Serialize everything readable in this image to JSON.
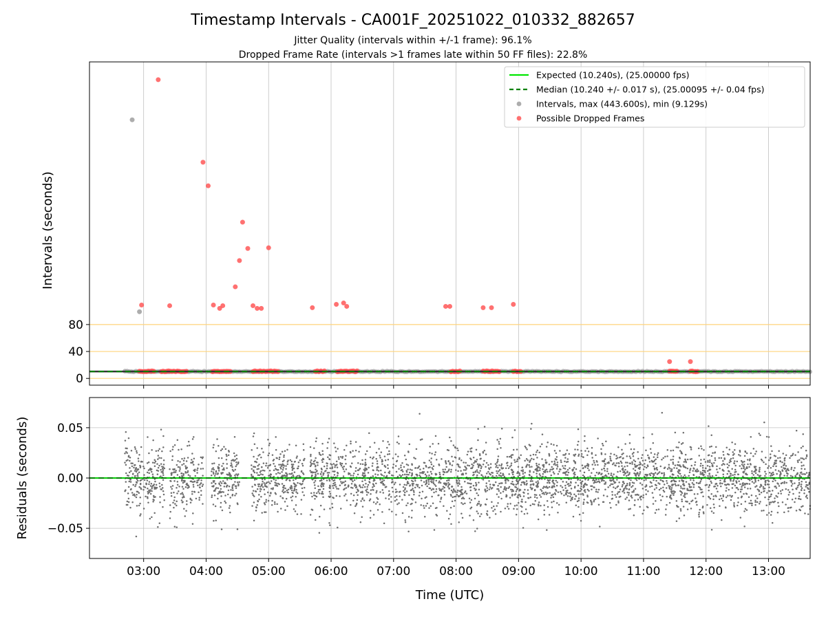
{
  "chart_data": [
    {
      "type": "scatter",
      "title": "Timestamp Intervals - CA001F_20251022_010332_882657",
      "subtitle_lines": [
        "Jitter Quality (intervals within +/-1 frame): 96.1%",
        "Dropped Frame Rate (intervals >1 frames late within 50 FF files): 22.8%"
      ],
      "ylabel": "Intervals (seconds)",
      "yticks": [
        "0",
        "40",
        "80"
      ],
      "ytick_values": [
        0,
        40,
        80
      ],
      "ylim": [
        -10,
        470
      ],
      "xlim": [
        "02:08",
        "13:40"
      ],
      "xticks": [
        "03:00",
        "04:00",
        "05:00",
        "06:00",
        "07:00",
        "08:00",
        "09:00",
        "10:00",
        "11:00",
        "12:00",
        "13:00"
      ],
      "grid": "vertical",
      "threshold_lines": [
        0,
        40,
        80
      ],
      "threshold_color": "#ffd37a",
      "legend_position": "top-right",
      "series": [
        {
          "name": "Expected (10.240s), (25.00000 fps)",
          "kind": "line",
          "color": "#00e600",
          "y": 10.24
        },
        {
          "name": "Median (10.240 +/- 0.017 s), (25.00095 +/- 0.04 fps)",
          "kind": "dashed-line",
          "color": "#008000",
          "y": 10.24
        },
        {
          "name": "Intervals, max (443.600s), min (9.129s)",
          "kind": "scatter",
          "color": "#999999",
          "points": [
            [
              "02:49",
              384.0
            ],
            [
              "02:56",
              99.0
            ]
          ],
          "band": {
            "from": "02:42",
            "to": "13:40",
            "y": 10.24
          }
        },
        {
          "name": "Possible Dropped Frames",
          "kind": "scatter",
          "color": "#ff4d4d",
          "points": [
            [
              "03:14",
              443.6
            ],
            [
              "03:57",
              321.0
            ],
            [
              "04:02",
              286.0
            ],
            [
              "04:35",
              232.0
            ],
            [
              "05:00",
              194.0
            ],
            [
              "04:40",
              193.0
            ],
            [
              "04:32",
              175.0
            ],
            [
              "04:28",
              136.0
            ],
            [
              "02:58",
              109.0
            ],
            [
              "03:25",
              108.0
            ],
            [
              "04:07",
              109.0
            ],
            [
              "04:13",
              104.0
            ],
            [
              "04:16",
              108.0
            ],
            [
              "04:45",
              108.0
            ],
            [
              "04:49",
              104.0
            ],
            [
              "04:53",
              104.0
            ],
            [
              "05:42",
              105.0
            ],
            [
              "06:05",
              110.0
            ],
            [
              "06:12",
              112.0
            ],
            [
              "06:15",
              107.0
            ],
            [
              "07:50",
              107.0
            ],
            [
              "07:54",
              107.0
            ],
            [
              "08:26",
              105.0
            ],
            [
              "08:34",
              105.0
            ],
            [
              "08:55",
              110.0
            ],
            [
              "11:25",
              25.0
            ],
            [
              "11:45",
              25.0
            ]
          ],
          "clusters": [
            {
              "from": "02:56",
              "to": "03:11",
              "y": 10.5
            },
            {
              "from": "03:17",
              "to": "03:42",
              "y": 10.5
            },
            {
              "from": "04:06",
              "to": "04:24",
              "y": 10.5
            },
            {
              "from": "04:45",
              "to": "05:10",
              "y": 10.5
            },
            {
              "from": "05:45",
              "to": "05:55",
              "y": 10.5
            },
            {
              "from": "06:06",
              "to": "06:25",
              "y": 10.5
            },
            {
              "from": "07:55",
              "to": "08:05",
              "y": 10.5
            },
            {
              "from": "08:26",
              "to": "08:42",
              "y": 10.5
            },
            {
              "from": "08:55",
              "to": "09:03",
              "y": 10.5
            },
            {
              "from": "11:25",
              "to": "11:33",
              "y": 10.5
            },
            {
              "from": "11:45",
              "to": "11:52",
              "y": 10.5
            }
          ]
        }
      ]
    },
    {
      "type": "scatter",
      "xlabel": "Time (UTC)",
      "ylabel": "Residuals (seconds)",
      "yticks": [
        "0.05",
        "0.00",
        "−0.05"
      ],
      "ytick_values": [
        0.05,
        0.0,
        -0.05
      ],
      "ylim": [
        -0.08,
        0.08
      ],
      "xlim": [
        "02:08",
        "13:40"
      ],
      "xticks": [
        "03:00",
        "04:00",
        "05:00",
        "06:00",
        "07:00",
        "08:00",
        "09:00",
        "10:00",
        "11:00",
        "12:00",
        "13:00"
      ],
      "grid": "both",
      "series": [
        {
          "kind": "line",
          "color": "#00cc00",
          "y": 0.0
        },
        {
          "kind": "dashed-line",
          "color": "#008000",
          "y": 0.0
        },
        {
          "kind": "scatter",
          "color": "#6e6e6e",
          "count": 3900,
          "spread_sd": 0.017,
          "from": "02:42",
          "to": "13:40",
          "gaps": [
            [
              "03:20",
              "03:25"
            ],
            [
              "03:57",
              "04:05"
            ],
            [
              "04:32",
              "04:43"
            ],
            [
              "05:35",
              "05:40"
            ]
          ]
        }
      ]
    }
  ]
}
